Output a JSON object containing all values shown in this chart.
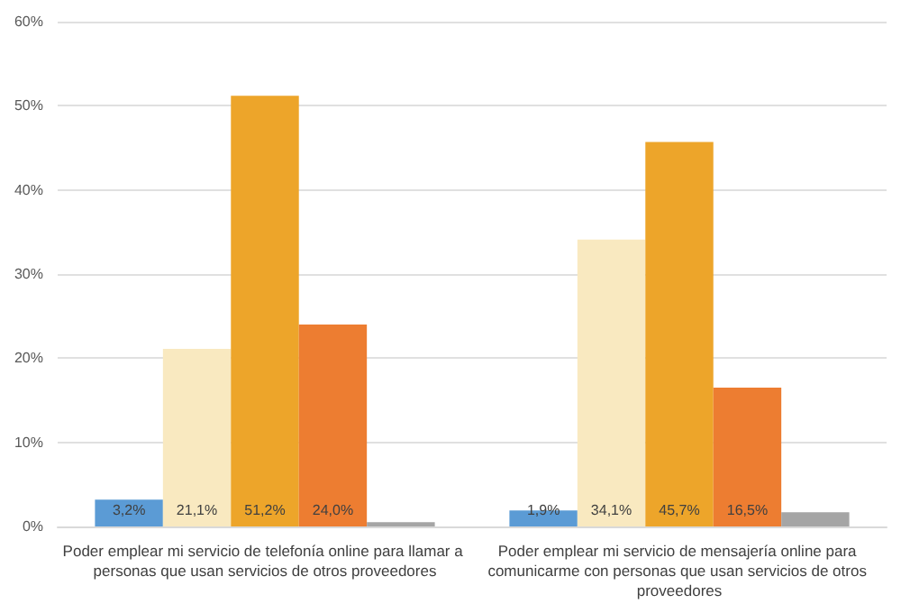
{
  "chart_data": {
    "type": "bar",
    "categories": [
      "Poder emplear mi servicio de telefonía online para llamar a personas que usan servicios de otros proveedores",
      "Poder emplear mi servicio de mensajería online para comunicarme con personas que usan servicios de otros proveedores"
    ],
    "series": [
      {
        "color": "#5b9bd5",
        "values": [
          3.2,
          1.9
        ],
        "value_labels": [
          "3,2%",
          "1,9%"
        ]
      },
      {
        "color": "#f9e9c0",
        "values": [
          21.1,
          34.1
        ],
        "value_labels": [
          "21,1%",
          "34,1%"
        ]
      },
      {
        "color": "#eda52a",
        "values": [
          51.2,
          45.7
        ],
        "value_labels": [
          "51,2%",
          "45,7%"
        ]
      },
      {
        "color": "#ed7d31",
        "values": [
          24.0,
          16.5
        ],
        "value_labels": [
          "24,0%",
          "16,5%"
        ]
      },
      {
        "color": "#a5a5a5",
        "values": [
          0.5,
          1.7
        ]
      }
    ],
    "ylim": [
      0,
      60
    ],
    "yticks": [
      {
        "value": 0,
        "label": "0%"
      },
      {
        "value": 10,
        "label": "10%"
      },
      {
        "value": 20,
        "label": "20%"
      },
      {
        "value": 30,
        "label": "30%"
      },
      {
        "value": 40,
        "label": "40%"
      },
      {
        "value": 50,
        "label": "50%"
      },
      {
        "value": 60,
        "label": "60%"
      }
    ],
    "grid": "y"
  }
}
